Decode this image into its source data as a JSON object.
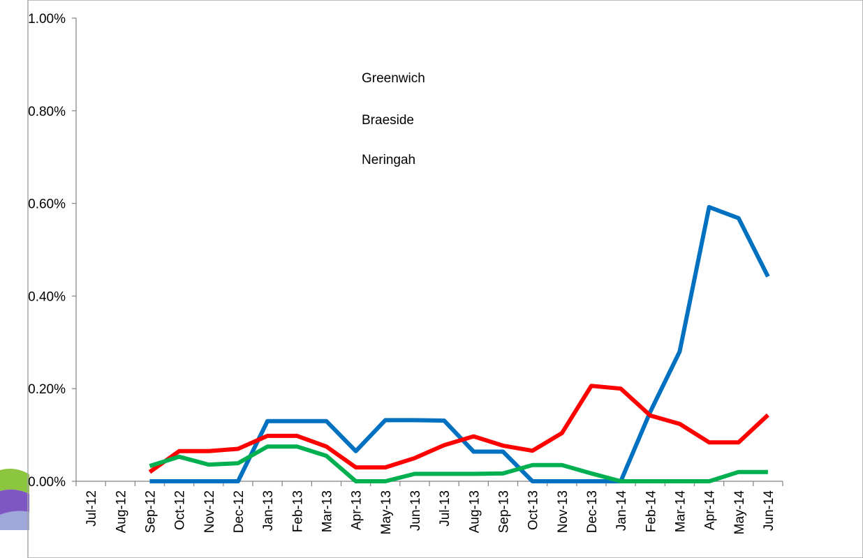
{
  "chart_data": {
    "type": "line",
    "title": "",
    "xlabel": "",
    "ylabel": "",
    "categories": [
      "Jul-12",
      "Aug-12",
      "Sep-12",
      "Oct-12",
      "Nov-12",
      "Dec-12",
      "Jan-13",
      "Feb-13",
      "Mar-13",
      "Apr-13",
      "May-13",
      "Jun-13",
      "Jul-13",
      "Aug-13",
      "Sep-13",
      "Oct-13",
      "Nov-13",
      "Dec-13",
      "Jan-14",
      "Feb-14",
      "Mar-14",
      "Apr-14",
      "May-14",
      "Jun-14"
    ],
    "ylim": [
      0,
      1.0
    ],
    "yticks": [
      "0.00%",
      "0.20%",
      "0.40%",
      "0.60%",
      "0.80%",
      "1.00%"
    ],
    "grid": false,
    "legend_position": "top-center",
    "series": [
      {
        "name": "Greenwich",
        "color": "#0070C0",
        "values": [
          null,
          null,
          0,
          0,
          0,
          0,
          0.13,
          0.13,
          0.13,
          0.065,
          0.132,
          0.132,
          0.131,
          0.064,
          0.064,
          0,
          0,
          0,
          0,
          0.15,
          0.28,
          0.592,
          0.568,
          0.442
        ]
      },
      {
        "name": "Braeside",
        "color": "#FF0000",
        "values": [
          null,
          null,
          0.02,
          0.065,
          0.065,
          0.07,
          0.098,
          0.098,
          0.075,
          0.03,
          0.03,
          0.05,
          0.078,
          0.097,
          0.077,
          0.066,
          0.104,
          0.206,
          0.2,
          0.142,
          0.124,
          0.084,
          0.084,
          0.143
        ]
      },
      {
        "name": "Neringah",
        "color": "#00B050",
        "values": [
          null,
          null,
          0.033,
          0.053,
          0.036,
          0.039,
          0.075,
          0.075,
          0.055,
          0,
          0,
          0.016,
          0.016,
          0.016,
          0.017,
          0.035,
          0.035,
          0.017,
          0,
          0,
          0,
          0,
          0.02,
          0.02
        ]
      }
    ]
  }
}
